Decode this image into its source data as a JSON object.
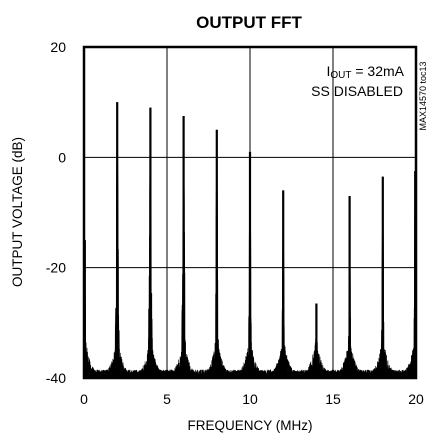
{
  "chart_data": {
    "type": "line",
    "title": "OUTPUT FFT",
    "xlabel": "FREQUENCY (MHz)",
    "ylabel": "OUTPUT VOLTAGE (dB)",
    "xlim": [
      0,
      20
    ],
    "ylim": [
      -40,
      20
    ],
    "x_ticks": [
      0,
      5,
      10,
      15,
      20
    ],
    "y_ticks": [
      -40,
      -20,
      0,
      20
    ],
    "x_tick_labels": [
      "0",
      "5",
      "10",
      "15",
      "20"
    ],
    "y_tick_labels": [
      "-40",
      "-20",
      "0",
      "20"
    ],
    "grid": true,
    "annotation": {
      "line1_main": "I",
      "line1_sub": "OUT",
      "line1_rest": " = 32mA",
      "line2": "SS DISABLED"
    },
    "figure_code": "MAX14570 toc13",
    "noise_floor_db": -40,
    "series": [
      {
        "x": [
          0.05,
          2,
          4,
          6,
          8,
          10,
          12,
          14,
          16,
          18,
          19.95
        ],
        "values": [
          -15,
          10,
          9,
          7.5,
          5,
          1,
          -6,
          -26.5,
          -7,
          -3.5,
          -2.5
        ]
      }
    ],
    "colors": {
      "trace": "#000000",
      "grid": "#000000",
      "background": "#ffffff"
    }
  }
}
